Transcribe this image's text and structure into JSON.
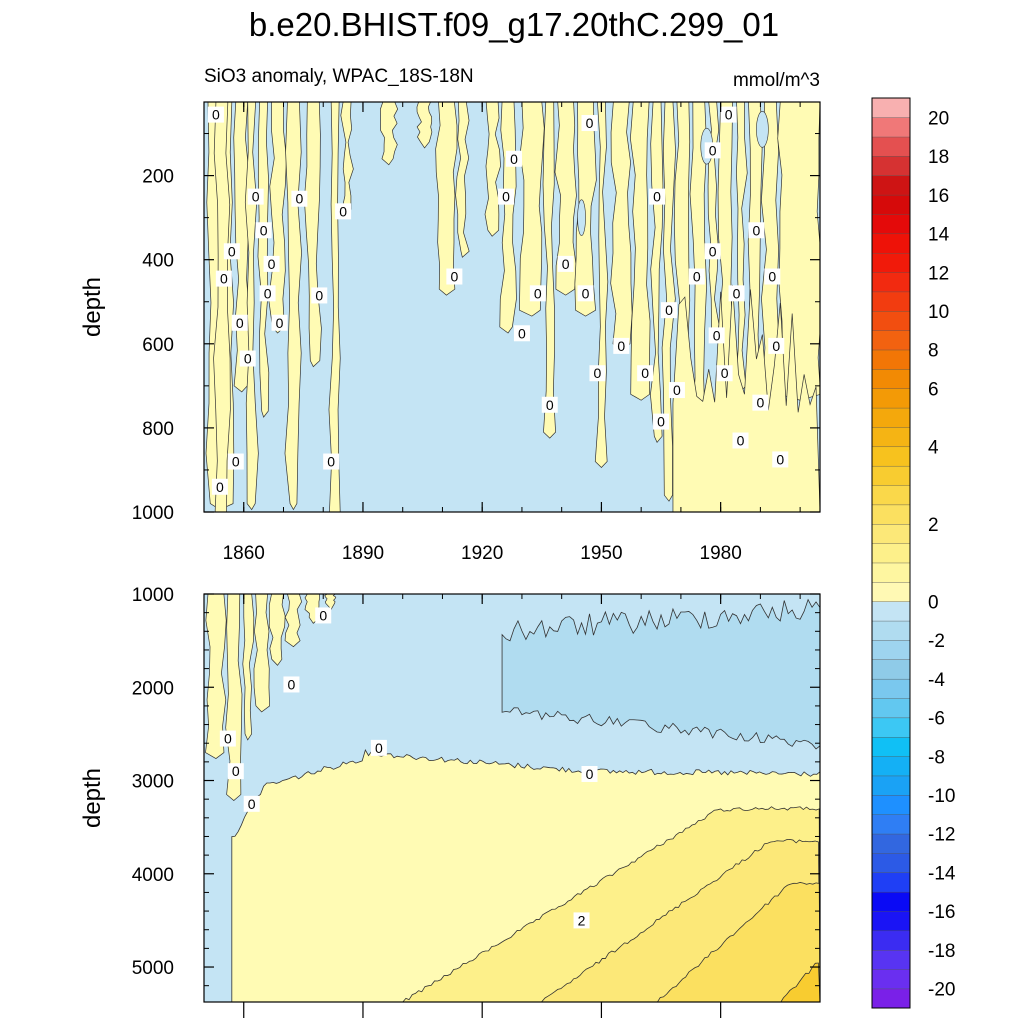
{
  "chart_data": {
    "type": "heatmap",
    "title": "b.e20.BHIST.f09_g17.20thC.299_01",
    "subtitle_left": "SiO3 anomaly, WPAC_18S-18N",
    "subtitle_right": "mmol/m^3",
    "xlabel": "",
    "ylabel": "depth",
    "x_range": [
      1850,
      2005
    ],
    "x_ticks": [
      1860,
      1890,
      1920,
      1950,
      1980
    ],
    "x_tick_labels": [
      "1860",
      "1890",
      "1920",
      "1950",
      "1980"
    ],
    "panels": [
      {
        "name": "upper",
        "ylim": [
          25,
          1000
        ],
        "y_ticks": [
          200,
          400,
          600,
          800,
          1000
        ],
        "y_tick_labels": [
          "200",
          "400",
          "600",
          "800",
          "1000"
        ],
        "contour_labels": [
          "0"
        ]
      },
      {
        "name": "lower",
        "ylim": [
          1000,
          5375
        ],
        "y_ticks": [
          1000,
          2000,
          3000,
          4000,
          5000
        ],
        "y_tick_labels": [
          "1000",
          "2000",
          "3000",
          "4000",
          "5000"
        ],
        "contour_labels": [
          "0",
          "2"
        ]
      }
    ],
    "colorbar": {
      "levels": [
        -21,
        -20,
        -19,
        -18,
        -17,
        -16,
        -15,
        -14,
        -13,
        -12,
        -11,
        -10,
        -9,
        -8,
        -7,
        -6,
        -5,
        -4,
        -3,
        -2,
        -1,
        0,
        0.5,
        1,
        1.5,
        2,
        2.5,
        3,
        3.5,
        4,
        4.5,
        5,
        6,
        7,
        8,
        9,
        10,
        11,
        12,
        13,
        14,
        15,
        16,
        17,
        18,
        19,
        20,
        21
      ],
      "tick_values": [
        -20,
        -18,
        -16,
        -14,
        -12,
        -10,
        -8,
        -6,
        -4,
        -2,
        0,
        2,
        4,
        6,
        8,
        10,
        12,
        14,
        16,
        18,
        20
      ],
      "tick_labels": [
        "-20",
        "-18",
        "-16",
        "-14",
        "-12",
        "-10",
        "-8",
        "-6",
        "-4",
        "-2",
        "0",
        "2",
        "4",
        "6",
        "8",
        "10",
        "12",
        "14",
        "16",
        "18",
        "20"
      ],
      "colors": [
        "#7a20e8",
        "#6a2ff0",
        "#5834f2",
        "#3b2cf2",
        "#1a14f5",
        "#0a0af5",
        "#1f3ff5",
        "#2c5ae6",
        "#3267e0",
        "#2f7ef4",
        "#1e90ff",
        "#1aa2f5",
        "#14b0f5",
        "#10c0f5",
        "#3cc8f4",
        "#62c8f0",
        "#7ac8ee",
        "#8fcbe8",
        "#9ed4ef",
        "#b0dcf0",
        "#c4e4f4",
        "#fff9b4",
        "#fef6a0",
        "#fdf08a",
        "#fce878",
        "#fbe060",
        "#fad84a",
        "#f8cc30",
        "#f7c21e",
        "#f5b414",
        "#f4a80c",
        "#f39a06",
        "#f28a04",
        "#f27606",
        "#f26210",
        "#f24e10",
        "#f23c10",
        "#f22a10",
        "#f11a0a",
        "#ee1208",
        "#e40a0a",
        "#d60a0a",
        "#ce1414",
        "#d63232",
        "#e45050",
        "#f07878",
        "#f8b0b0"
      ]
    },
    "field_colors": {
      "neg1": "#c4e4f4",
      "neg2": "#b0dcf0",
      "pos0": "#fffbb4",
      "pos1": "#fdf08a",
      "pos2": "#fce878",
      "pos3": "#fbe060",
      "pos4": "#fad84a",
      "pos5": "#f8cc30"
    }
  }
}
